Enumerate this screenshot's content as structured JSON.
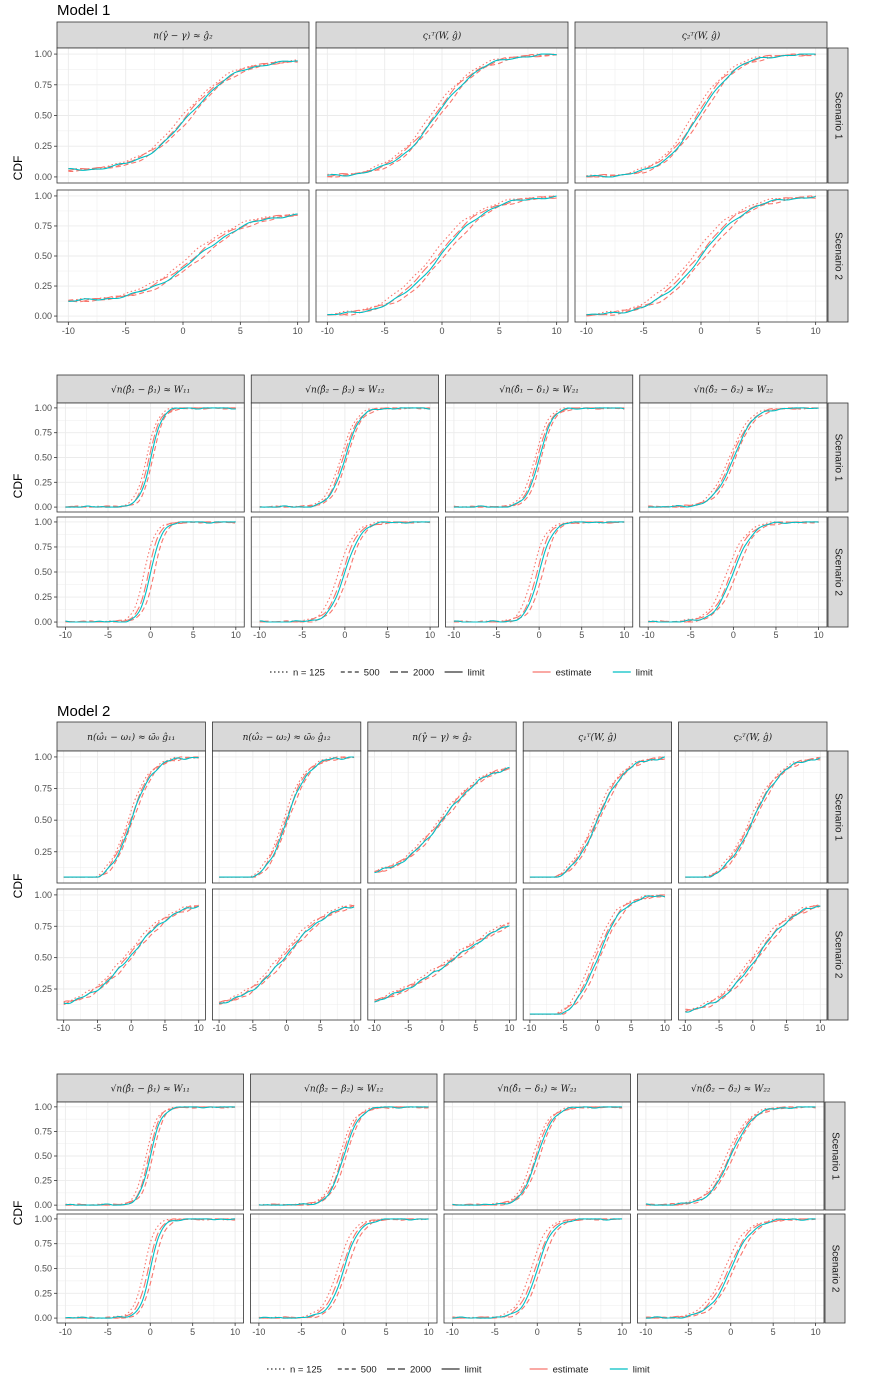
{
  "page": {
    "models": [
      {
        "title": "Model 1"
      },
      {
        "title": "Model 2"
      }
    ]
  },
  "chart_data": [
    {
      "type": "line",
      "section": "Model 1",
      "ylabel": "CDF",
      "xlim": [
        -10,
        10
      ],
      "ylim": [
        0,
        1
      ],
      "xticks": [
        "-10",
        "-5",
        "0",
        "5",
        "10"
      ],
      "yticks": [
        "0.00",
        "0.25",
        "0.50",
        "0.75",
        "1.00"
      ],
      "rows": [
        "Scenario 1",
        "Scenario 2"
      ],
      "columns": [
        {
          "label": "n(γ̂ − γ) ≈ ĝ₂",
          "curves": [
            {
              "center": 0.5,
              "scale": 3.5,
              "lo": 0.05,
              "hi": 0.95
            },
            {
              "center": 1.2,
              "scale": 4.0,
              "lo": 0.12,
              "hi": 0.86
            }
          ]
        },
        {
          "label": "ς₁ᵀ(W, ĝ)",
          "curves": [
            {
              "center": -0.5,
              "scale": 3.3,
              "lo": 0.0,
              "hi": 1.0
            },
            {
              "center": -0.2,
              "scale": 3.6,
              "lo": 0.0,
              "hi": 1.0
            }
          ]
        },
        {
          "label": "ς₂ᵀ(W, ĝ)",
          "curves": [
            {
              "center": -0.2,
              "scale": 2.8,
              "lo": 0.0,
              "hi": 1.0
            },
            {
              "center": 0.0,
              "scale": 3.5,
              "lo": 0.0,
              "hi": 1.0
            }
          ]
        }
      ]
    },
    {
      "type": "line",
      "section": "Model 1",
      "ylabel": "CDF",
      "xlim": [
        -10,
        10
      ],
      "ylim": [
        0,
        1
      ],
      "xticks": [
        "-10",
        "-5",
        "0",
        "5",
        "10"
      ],
      "yticks": [
        "0.00",
        "0.25",
        "0.50",
        "0.75",
        "1.00"
      ],
      "rows": [
        "Scenario 1",
        "Scenario 2"
      ],
      "columns": [
        {
          "label": "√n(β̂₁ − β₁) ≈ W₁₁",
          "curves": [
            {
              "center": 0.0,
              "scale": 1.1,
              "lo": 0.0,
              "hi": 1.0
            },
            {
              "center": 0.0,
              "scale": 1.1,
              "lo": 0.0,
              "hi": 1.0
            }
          ]
        },
        {
          "label": "√n(β̂₂ − β₂) ≈ W₁₂",
          "curves": [
            {
              "center": 0.0,
              "scale": 1.5,
              "lo": 0.0,
              "hi": 1.0
            },
            {
              "center": 0.0,
              "scale": 1.6,
              "lo": 0.0,
              "hi": 1.0
            }
          ]
        },
        {
          "label": "√n(δ̂₁ − δ₁) ≈ W₂₁",
          "curves": [
            {
              "center": 0.0,
              "scale": 1.3,
              "lo": 0.0,
              "hi": 1.0
            },
            {
              "center": 0.0,
              "scale": 1.3,
              "lo": 0.0,
              "hi": 1.0
            }
          ]
        },
        {
          "label": "√n(δ̂₂ − δ₂) ≈ W₂₂",
          "curves": [
            {
              "center": 0.0,
              "scale": 2.0,
              "lo": 0.0,
              "hi": 1.0
            },
            {
              "center": 0.0,
              "scale": 1.9,
              "lo": 0.0,
              "hi": 1.0
            }
          ]
        }
      ]
    },
    {
      "type": "line",
      "section": "Model 2",
      "ylabel": "CDF",
      "xlim": [
        -10,
        10
      ],
      "ylim": [
        0.05,
        1.0
      ],
      "xticks": [
        "-10",
        "-5",
        "0",
        "5",
        "10"
      ],
      "yticks": [
        "0.25",
        "0.50",
        "0.75",
        "1.00"
      ],
      "rows": [
        "Scenario 1",
        "Scenario 2"
      ],
      "columns": [
        {
          "label": "n(ω̂₁ − ω₁) ≈ ω̄₀ ĝ₁₁",
          "curves": [
            {
              "center": 0.0,
              "scale": 2.8,
              "lo": 0.0,
              "hi": 1.0
            },
            {
              "center": 0.0,
              "scale": 5.5,
              "lo": 0.1,
              "hi": 0.95
            }
          ]
        },
        {
          "label": "n(ω̂₂ − ω₂) ≈ ω̄₀ ĝ₁₂",
          "curves": [
            {
              "center": 0.0,
              "scale": 2.8,
              "lo": 0.0,
              "hi": 1.0
            },
            {
              "center": 0.0,
              "scale": 5.5,
              "lo": 0.1,
              "hi": 0.95
            }
          ]
        },
        {
          "label": "n(γ̂ − γ) ≈ ĝ₂",
          "curves": [
            {
              "center": 0.0,
              "scale": 5.5,
              "lo": 0.05,
              "hi": 0.95
            },
            {
              "center": 2.0,
              "scale": 10.0,
              "lo": 0.05,
              "hi": 0.95
            }
          ]
        },
        {
          "label": "ς₁ᵀ(W, ĝ)",
          "curves": [
            {
              "center": 0.0,
              "scale": 3.5,
              "lo": 0.0,
              "hi": 1.0
            },
            {
              "center": 0.0,
              "scale": 3.2,
              "lo": 0.0,
              "hi": 1.0
            }
          ]
        },
        {
          "label": "ς₂ᵀ(W, ĝ)",
          "curves": [
            {
              "center": 0.0,
              "scale": 3.8,
              "lo": 0.0,
              "hi": 1.0
            },
            {
              "center": 0.5,
              "scale": 5.0,
              "lo": 0.05,
              "hi": 0.95
            }
          ]
        }
      ]
    },
    {
      "type": "line",
      "section": "Model 2",
      "ylabel": "CDF",
      "xlim": [
        -10,
        10
      ],
      "ylim": [
        0,
        1
      ],
      "xticks": [
        "-10",
        "-5",
        "0",
        "5",
        "10"
      ],
      "yticks": [
        "0.00",
        "0.25",
        "0.50",
        "0.75",
        "1.00"
      ],
      "rows": [
        "Scenario 1",
        "Scenario 2"
      ],
      "columns": [
        {
          "label": "√n(β̂₁ − β₁) ≈ W₁₁",
          "curves": [
            {
              "center": 0.0,
              "scale": 1.1,
              "lo": 0.0,
              "hi": 1.0
            },
            {
              "center": 0.0,
              "scale": 1.1,
              "lo": 0.0,
              "hi": 1.0
            }
          ]
        },
        {
          "label": "√n(β̂₂ − β₂) ≈ W₁₂",
          "curves": [
            {
              "center": 0.0,
              "scale": 1.5,
              "lo": 0.0,
              "hi": 1.0
            },
            {
              "center": 0.0,
              "scale": 1.6,
              "lo": 0.0,
              "hi": 1.0
            }
          ]
        },
        {
          "label": "√n(δ̂₁ − δ₁) ≈ W₂₁",
          "curves": [
            {
              "center": 0.0,
              "scale": 1.6,
              "lo": 0.0,
              "hi": 1.0
            },
            {
              "center": 0.0,
              "scale": 1.6,
              "lo": 0.0,
              "hi": 1.0
            }
          ]
        },
        {
          "label": "√n(δ̂₂ − δ₂) ≈ W₂₂",
          "curves": [
            {
              "center": 0.0,
              "scale": 2.2,
              "lo": 0.0,
              "hi": 1.0
            },
            {
              "center": 0.0,
              "scale": 2.2,
              "lo": 0.0,
              "hi": 1.0
            }
          ]
        }
      ]
    }
  ],
  "legend": {
    "linetype_entries": [
      {
        "label": "n = 125",
        "style": "dotted"
      },
      {
        "label": "500",
        "style": "dashed"
      },
      {
        "label": "2000",
        "style": "longdash"
      },
      {
        "label": "limit",
        "style": "solid"
      }
    ],
    "color_entries": [
      {
        "label": "estimate",
        "color": "#F8766D"
      },
      {
        "label": "limit",
        "color": "#00BFC4"
      }
    ]
  },
  "colors": {
    "estimate": "#F8766D",
    "limit": "#00BFC4",
    "strip_fill": "#d9d9d9",
    "grid": "#ebebeb"
  }
}
